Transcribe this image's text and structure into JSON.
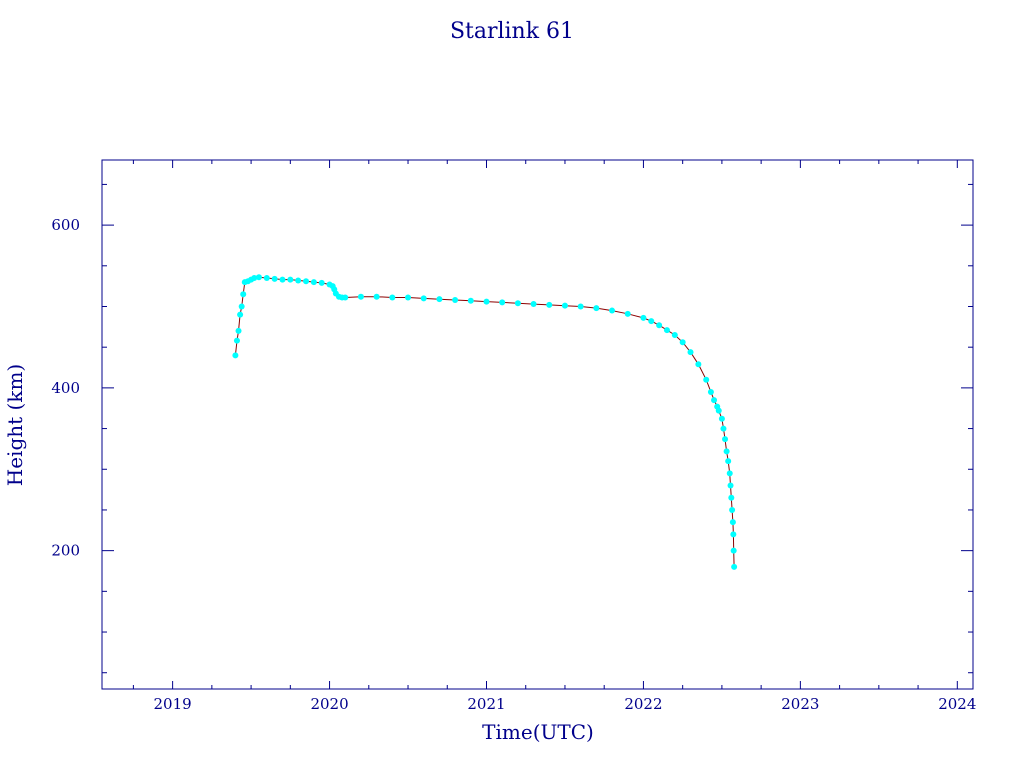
{
  "chart_data": {
    "type": "scatter",
    "title": "Starlink 61",
    "xlabel": "Time(UTC)",
    "ylabel": "Height (km)",
    "xlim": [
      2018.55,
      2024.1
    ],
    "ylim": [
      30,
      680
    ],
    "x_ticks": [
      "2019",
      "2020",
      "2021",
      "2022",
      "2023",
      "2024"
    ],
    "y_ticks": [
      "200",
      "400",
      "600"
    ],
    "grid": false,
    "legend": "none",
    "marker_color": "#00ffff",
    "line_color": "#8b0000",
    "axis_color": "#00008b",
    "points": [
      [
        2019.4,
        440
      ],
      [
        2019.41,
        458
      ],
      [
        2019.42,
        470
      ],
      [
        2019.43,
        490
      ],
      [
        2019.44,
        500
      ],
      [
        2019.45,
        515
      ],
      [
        2019.46,
        530
      ],
      [
        2019.48,
        531
      ],
      [
        2019.5,
        533
      ],
      [
        2019.52,
        535
      ],
      [
        2019.55,
        536
      ],
      [
        2019.6,
        535
      ],
      [
        2019.65,
        534
      ],
      [
        2019.7,
        533
      ],
      [
        2019.75,
        533
      ],
      [
        2019.8,
        532
      ],
      [
        2019.85,
        531
      ],
      [
        2019.9,
        530
      ],
      [
        2019.95,
        529
      ],
      [
        2020.0,
        527
      ],
      [
        2020.02,
        525
      ],
      [
        2020.03,
        521
      ],
      [
        2020.04,
        516
      ],
      [
        2020.06,
        512
      ],
      [
        2020.08,
        511
      ],
      [
        2020.1,
        511
      ],
      [
        2020.2,
        512
      ],
      [
        2020.3,
        512
      ],
      [
        2020.4,
        511
      ],
      [
        2020.5,
        511
      ],
      [
        2020.6,
        510
      ],
      [
        2020.7,
        509
      ],
      [
        2020.8,
        508
      ],
      [
        2020.9,
        507
      ],
      [
        2021.0,
        506
      ],
      [
        2021.1,
        505
      ],
      [
        2021.2,
        504
      ],
      [
        2021.3,
        503
      ],
      [
        2021.4,
        502
      ],
      [
        2021.5,
        501
      ],
      [
        2021.6,
        500
      ],
      [
        2021.7,
        498
      ],
      [
        2021.8,
        495
      ],
      [
        2021.9,
        491
      ],
      [
        2022.0,
        486
      ],
      [
        2022.05,
        482
      ],
      [
        2022.1,
        477
      ],
      [
        2022.15,
        471
      ],
      [
        2022.2,
        465
      ],
      [
        2022.25,
        456
      ],
      [
        2022.3,
        444
      ],
      [
        2022.35,
        429
      ],
      [
        2022.4,
        410
      ],
      [
        2022.43,
        395
      ],
      [
        2022.45,
        385
      ],
      [
        2022.47,
        377
      ],
      [
        2022.48,
        372
      ],
      [
        2022.5,
        362
      ],
      [
        2022.51,
        350
      ],
      [
        2022.52,
        337
      ],
      [
        2022.53,
        322
      ],
      [
        2022.54,
        310
      ],
      [
        2022.55,
        295
      ],
      [
        2022.555,
        280
      ],
      [
        2022.56,
        265
      ],
      [
        2022.565,
        250
      ],
      [
        2022.57,
        235
      ],
      [
        2022.573,
        220
      ],
      [
        2022.575,
        200
      ],
      [
        2022.578,
        180
      ]
    ]
  }
}
